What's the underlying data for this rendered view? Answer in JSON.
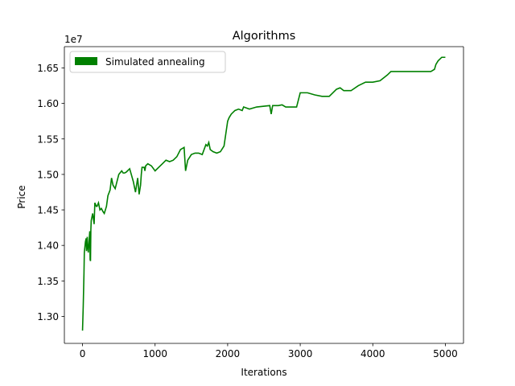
{
  "chart_data": {
    "type": "line",
    "title": "Algorithms",
    "xlabel": "Iterations",
    "ylabel": "Price",
    "offset_text": "1e7",
    "xlim": [
      -250,
      5250
    ],
    "ylim": [
      12.62,
      16.8
    ],
    "x_ticks": [
      0,
      1000,
      2000,
      3000,
      4000,
      5000
    ],
    "x_tick_labels": [
      "0",
      "1000",
      "2000",
      "3000",
      "4000",
      "5000"
    ],
    "y_ticks": [
      13.0,
      13.5,
      14.0,
      14.5,
      15.0,
      15.5,
      16.0,
      16.5
    ],
    "y_tick_labels": [
      "1.30",
      "1.35",
      "1.40",
      "1.45",
      "1.50",
      "1.55",
      "1.60",
      "1.65"
    ],
    "y_unit_note": "values in units of 1e6 (axis multiplier 1e7)",
    "grid": false,
    "legend": {
      "placement": "top-left",
      "entries": [
        "Simulated annealing"
      ]
    },
    "colors": {
      "series": "#008000"
    },
    "series": [
      {
        "name": "Simulated annealing",
        "x": [
          0,
          10,
          20,
          25,
          30,
          35,
          40,
          50,
          55,
          60,
          65,
          70,
          75,
          80,
          90,
          100,
          105,
          110,
          115,
          120,
          140,
          160,
          170,
          190,
          200,
          220,
          240,
          260,
          280,
          300,
          330,
          350,
          380,
          400,
          420,
          450,
          480,
          500,
          540,
          560,
          580,
          600,
          620,
          650,
          700,
          730,
          760,
          780,
          800,
          810,
          820,
          850,
          860,
          870,
          900,
          950,
          1000,
          1050,
          1100,
          1150,
          1200,
          1250,
          1300,
          1350,
          1400,
          1420,
          1450,
          1500,
          1550,
          1600,
          1650,
          1700,
          1720,
          1740,
          1760,
          1800,
          1850,
          1900,
          1950,
          2000,
          2020,
          2050,
          2100,
          2150,
          2200,
          2220,
          2300,
          2400,
          2580,
          2600,
          2620,
          2700,
          2750,
          2800,
          2950,
          3000,
          3100,
          3200,
          3300,
          3400,
          3500,
          3550,
          3600,
          3700,
          3800,
          3900,
          4000,
          4100,
          4200,
          4250,
          4300,
          4500,
          4700,
          4800,
          4850,
          4870,
          4900,
          4950,
          5000
        ],
        "y": [
          12.8,
          13.15,
          13.6,
          13.9,
          13.95,
          14.0,
          14.05,
          14.1,
          13.92,
          14.0,
          14.12,
          14.0,
          13.95,
          13.9,
          14.05,
          14.2,
          13.8,
          13.78,
          14.22,
          14.35,
          14.45,
          14.3,
          14.6,
          14.55,
          14.55,
          14.6,
          14.5,
          14.52,
          14.48,
          14.45,
          14.55,
          14.7,
          14.78,
          14.95,
          14.85,
          14.8,
          14.92,
          15.0,
          15.05,
          15.02,
          15.02,
          15.03,
          15.05,
          15.08,
          14.9,
          14.75,
          14.95,
          14.72,
          14.85,
          15.0,
          15.1,
          15.1,
          15.05,
          15.12,
          15.15,
          15.12,
          15.05,
          15.1,
          15.15,
          15.2,
          15.18,
          15.2,
          15.25,
          15.35,
          15.38,
          15.05,
          15.2,
          15.28,
          15.3,
          15.3,
          15.28,
          15.42,
          15.4,
          15.45,
          15.35,
          15.32,
          15.3,
          15.32,
          15.4,
          15.75,
          15.8,
          15.85,
          15.9,
          15.92,
          15.9,
          15.95,
          15.92,
          15.95,
          15.97,
          15.85,
          15.97,
          15.97,
          15.98,
          15.95,
          15.95,
          16.15,
          16.15,
          16.12,
          16.1,
          16.1,
          16.2,
          16.22,
          16.18,
          16.18,
          16.25,
          16.3,
          16.3,
          16.32,
          16.4,
          16.45,
          16.45,
          16.45,
          16.45,
          16.45,
          16.48,
          16.55,
          16.6,
          16.65,
          16.65
        ]
      }
    ]
  }
}
